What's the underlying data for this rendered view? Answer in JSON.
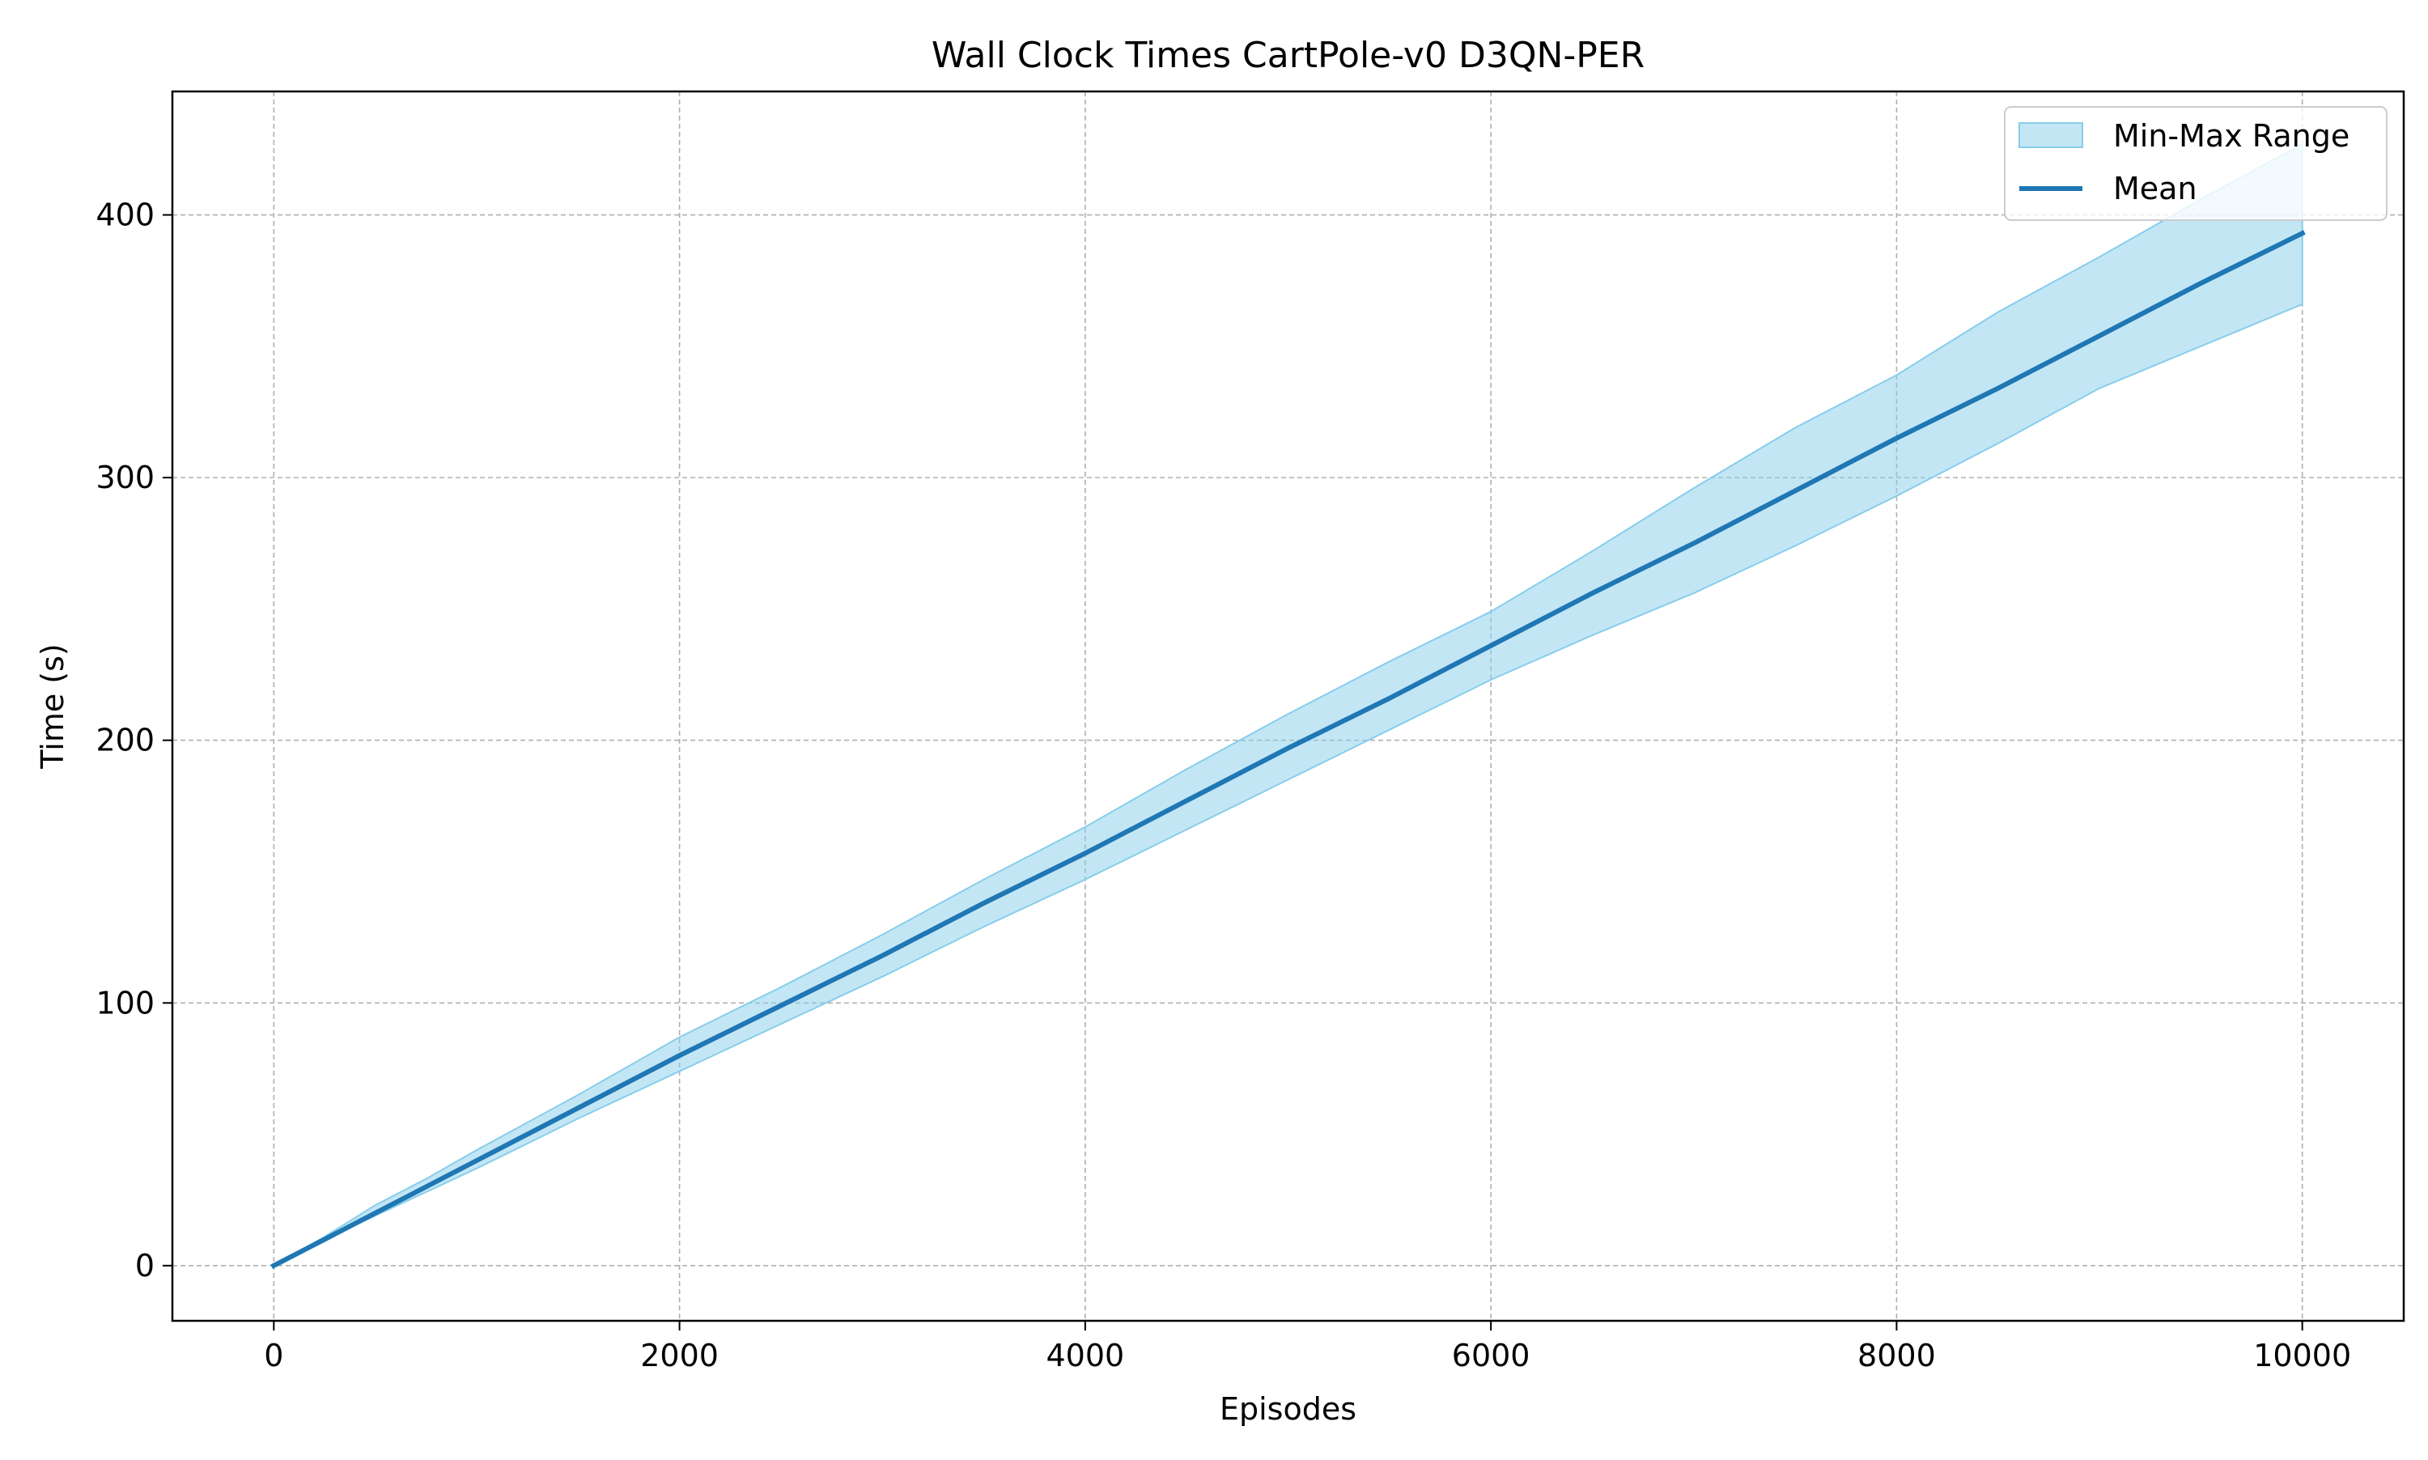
{
  "chart_data": {
    "type": "line",
    "title": "Wall Clock Times CartPole-v0 D3QN-PER",
    "xlabel": "Episodes",
    "ylabel": "Time (s)",
    "xlim": [
      -500,
      10500
    ],
    "ylim": [
      -21,
      447
    ],
    "xticks": [
      0,
      2000,
      4000,
      6000,
      8000,
      10000
    ],
    "xtick_labels": [
      "0",
      "2000",
      "4000",
      "6000",
      "8000",
      "10000"
    ],
    "yticks": [
      0,
      100,
      200,
      300,
      400
    ],
    "ytick_labels": [
      "0",
      "100",
      "200",
      "300",
      "400"
    ],
    "grid": true,
    "legend_position": "top-right",
    "legend": [
      "Min-Max Range",
      "Mean"
    ],
    "colors": {
      "mean": "#1f77b4",
      "range_fill": "#87ceeb",
      "range_edge": "#87ceeb",
      "grid": "#b0b0b0"
    },
    "x": [
      0,
      250,
      500,
      750,
      1000,
      1500,
      2000,
      2500,
      3000,
      3500,
      4000,
      4500,
      5000,
      5500,
      6000,
      6500,
      7000,
      7500,
      8000,
      8500,
      9000,
      9500,
      10000
    ],
    "series": [
      {
        "name": "Mean",
        "values": [
          0,
          10,
          20,
          30,
          40,
          60,
          80,
          99,
          118,
          138,
          157,
          177,
          197,
          216,
          236,
          256,
          275,
          295,
          315,
          334,
          354,
          374,
          393
        ]
      },
      {
        "name": "Min-Max Range",
        "upper": [
          0,
          11,
          23,
          33,
          44,
          65,
          87,
          106,
          126,
          147,
          167,
          189,
          210,
          230,
          249,
          272,
          296,
          319,
          339,
          363,
          384,
          406,
          427
        ],
        "lower": [
          0,
          10,
          19,
          28,
          37,
          56,
          74,
          92,
          110,
          129,
          147,
          166,
          185,
          204,
          223,
          240,
          256,
          274,
          293,
          313,
          334,
          350,
          366
        ]
      }
    ]
  }
}
